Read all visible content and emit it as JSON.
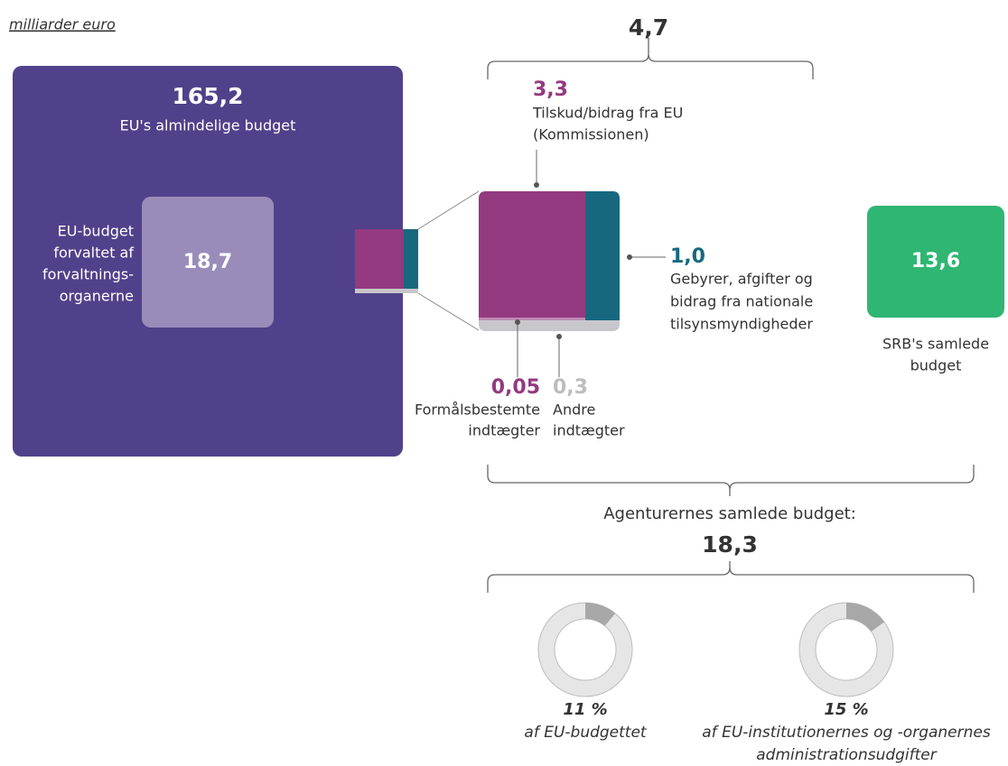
{
  "unit": "milliarder euro",
  "eu_budget": {
    "value": "165,2",
    "label": "EU's almindelige budget"
  },
  "managed": {
    "value": "18,7",
    "label": [
      "EU-budget",
      "forvaltet af",
      "forvaltnings-",
      "organerne"
    ]
  },
  "agencies_top": {
    "value": "4,7"
  },
  "contribution": {
    "value": "3,3",
    "label": [
      "Tilskud/bidrag fra EU",
      "(Kommissionen)"
    ]
  },
  "fees": {
    "value": "1,0",
    "label": [
      "Gebyrer, afgifter og",
      "bidrag fra nationale",
      "tilsynsmyndigheder"
    ]
  },
  "assigned": {
    "value": "0,05",
    "label": [
      "Formålsbestemte",
      "indtægter"
    ]
  },
  "other": {
    "value": "0,3",
    "label": [
      "Andre",
      "indtægter"
    ]
  },
  "srb": {
    "value": "13,6",
    "label": [
      "SRB's samlede",
      "budget"
    ]
  },
  "total": {
    "label": "Agenturernes samlede budget:",
    "value": "18,3"
  },
  "shares": [
    {
      "value": 11,
      "label": "11 %",
      "text": [
        "af EU-budgettet"
      ]
    },
    {
      "value": 15,
      "label": "15 %",
      "text": [
        "af EU-institutionernes og -organernes",
        "administrationsudgifter"
      ]
    }
  ]
}
